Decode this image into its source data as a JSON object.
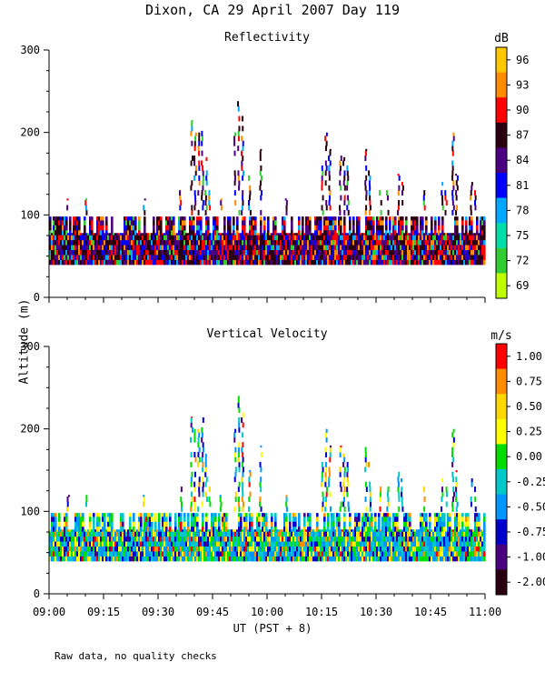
{
  "figure_title": "Dixon, CA 29 April 2007  Day 119",
  "y_axis_label": "Altitude (m)",
  "x_axis_label": "UT  (PST + 8)",
  "footnote": "Raw data, no quality checks",
  "chart_data": [
    {
      "type": "heatmap",
      "title": "Reflectivity",
      "x_ticks": [
        "09:00",
        "09:15",
        "09:30",
        "09:45",
        "10:00",
        "10:15",
        "10:30",
        "10:45",
        "11:00"
      ],
      "xlim_minutes_after_0900": [
        0,
        120
      ],
      "ylim": [
        0,
        300
      ],
      "y_ticks": [
        "0",
        "100",
        "200",
        "300"
      ],
      "colorbar_unit": "dB",
      "colorbar_labels": [
        "96",
        "93",
        "90",
        "87",
        "84",
        "81",
        "78",
        "75",
        "72",
        "69"
      ],
      "colorbar_colors": [
        "#ffc800",
        "#ff8c00",
        "#ff0000",
        "#2a0010",
        "#4b0082",
        "#0000ff",
        "#00a8ff",
        "#00dcaa",
        "#32cd32",
        "#bfff00"
      ],
      "data_description": "Dense echo band 40-100 m across entire period; towers to ~240 m near 09:52; plumes to ~200 m near 09:40-09:45, 10:15-10:22 and 10:50"
    },
    {
      "type": "heatmap",
      "title": "Vertical Velocity",
      "x_ticks": [
        "09:00",
        "09:15",
        "09:30",
        "09:45",
        "10:00",
        "10:15",
        "10:30",
        "10:45",
        "11:00"
      ],
      "xlim_minutes_after_0900": [
        0,
        120
      ],
      "ylim": [
        0,
        300
      ],
      "y_ticks": [
        "0",
        "100",
        "200",
        "300"
      ],
      "colorbar_unit": "m/s",
      "colorbar_labels": [
        "1.00",
        "0.75",
        "0.50",
        "0.25",
        "0.00",
        "-0.25",
        "-0.50",
        "-0.75",
        "-1.00",
        "-2.00"
      ],
      "colorbar_colors": [
        "#ff0000",
        "#ff8c00",
        "#ffd700",
        "#ffff00",
        "#00dd00",
        "#00c8c8",
        "#0096ff",
        "#0000cd",
        "#4b0082",
        "#2a0010"
      ],
      "data_description": "Velocities mostly -0.5 to 0.5 m/s within 40-100 m layer; isolated updraft columns reaching ~240 m near 09:52"
    }
  ]
}
